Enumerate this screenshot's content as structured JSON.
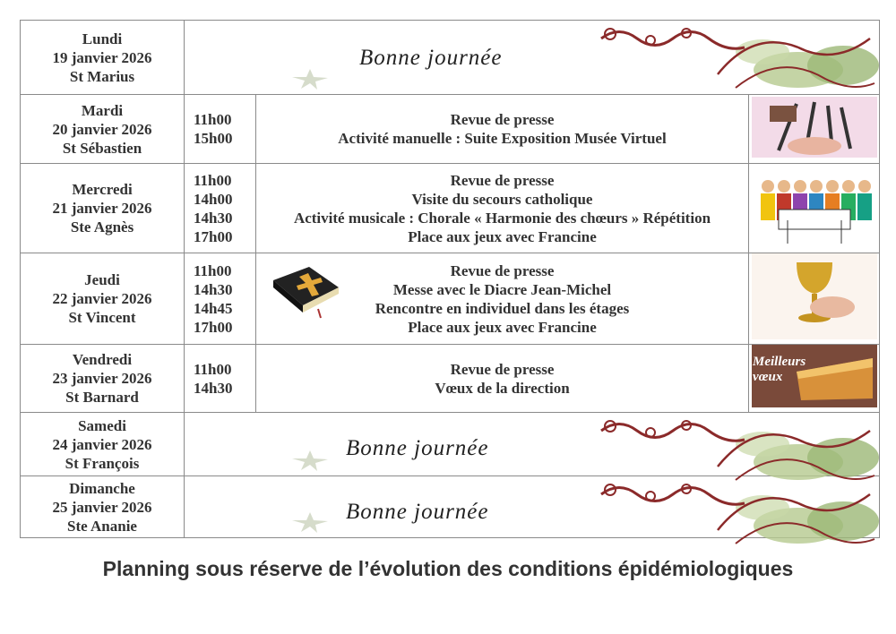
{
  "days": [
    {
      "day": "Lundi",
      "date": "19 janvier 2026",
      "saint": "St Marius",
      "wish": "Bonne journée",
      "height": 82
    },
    {
      "day": "Mardi",
      "date": "20 janvier 2026",
      "saint": "St Sébastien",
      "height": 77,
      "events": [
        {
          "time": "11h00",
          "label": "Revue de presse"
        },
        {
          "time": "15h00",
          "label": "Activité manuelle : Suite Exposition Musée Virtuel"
        }
      ],
      "image": "painting-brushes"
    },
    {
      "day": "Mercredi",
      "date": "21 janvier 2026",
      "saint": "Ste Agnès",
      "height": 100,
      "events": [
        {
          "time": "11h00",
          "label": "Revue de presse"
        },
        {
          "time": "14h00",
          "label": "Visite du secours catholique"
        },
        {
          "time": "14h30",
          "label": "Activité musicale : Chorale « Harmonie des chœurs » Répétition"
        },
        {
          "time": "17h00",
          "label": "Place aux jeux avec Francine"
        }
      ],
      "image": "choir"
    },
    {
      "day": "Jeudi",
      "date": "22 janvier 2026",
      "saint": "St Vincent",
      "height": 102,
      "events": [
        {
          "time": "11h00",
          "label": "Revue de presse"
        },
        {
          "time": "14h30",
          "label": "Messe avec le Diacre Jean-Michel"
        },
        {
          "time": "14h45",
          "label": "Rencontre en individuel dans les étages"
        },
        {
          "time": "17h00",
          "label": "Place aux jeux avec Francine"
        }
      ],
      "image": "chalice",
      "extra_icon": "bible"
    },
    {
      "day": "Vendredi",
      "date": "23 janvier 2026",
      "saint": "St Barnard",
      "height": 74,
      "events": [
        {
          "time": "11h00",
          "label": "Revue de presse"
        },
        {
          "time": "14h30",
          "label": "Vœux de la direction"
        }
      ],
      "image": "galette",
      "image_text": "Meilleurs vœux"
    },
    {
      "day": "Samedi",
      "date": "24 janvier 2026",
      "saint": "St François",
      "wish": "Bonne journée",
      "height": 70
    },
    {
      "day": "Dimanche",
      "date": "25 janvier 2026",
      "saint": "Ste Ananie",
      "wish": "Bonne journée",
      "height": 68
    }
  ],
  "footer": "Planning sous réserve de l’évolution des conditions épidémiologiques",
  "colors": {
    "border": "#8a8a8a",
    "swirl_red": "#8b2a2a",
    "leaf_green": "#8fae6a"
  }
}
